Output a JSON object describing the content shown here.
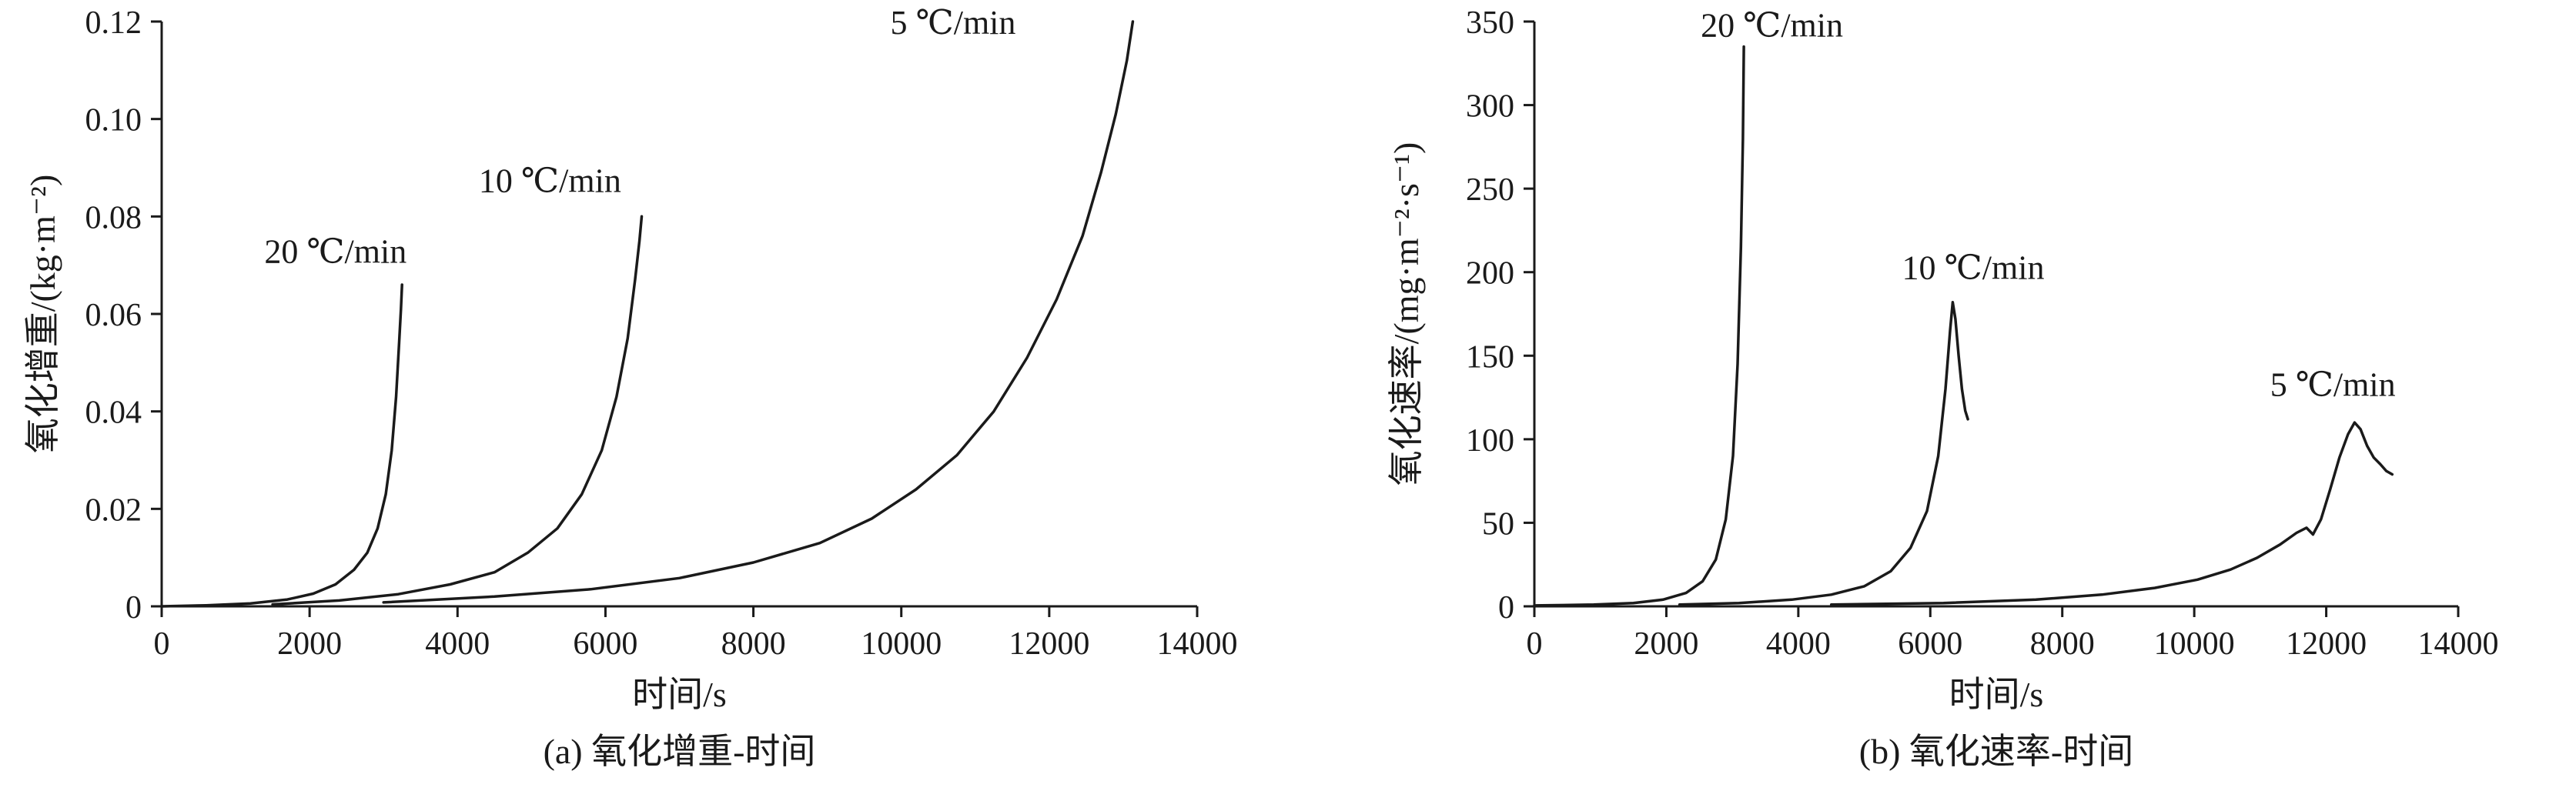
{
  "page": {
    "background": "#ffffff",
    "line_color": "#1a1a1a"
  },
  "chart_data": [
    {
      "id": "a",
      "type": "line",
      "title": "",
      "caption": "(a) 氧化增重-时间",
      "xlabel": "时间/s",
      "ylabel": "氧化增重/(kg·m⁻²)",
      "xlim": [
        0,
        14000
      ],
      "ylim": [
        0,
        0.12
      ],
      "grid": false,
      "legend": "inline-annotations",
      "xticks": [
        0,
        2000,
        4000,
        6000,
        8000,
        10000,
        12000,
        14000
      ],
      "xtick_labels": [
        "0",
        "2000",
        "4000",
        "6000",
        "8000",
        "10000",
        "12000",
        "14000"
      ],
      "yticks": [
        0,
        0.02,
        0.04,
        0.06,
        0.08,
        0.1,
        0.12
      ],
      "ytick_labels": [
        "0",
        "0.02",
        "0.04",
        "0.06",
        "0.08",
        "0.10",
        "0.12"
      ],
      "series": [
        {
          "name": "20 ℃/min",
          "label_pos": [
            2350,
            0.0705
          ],
          "points": [
            [
              0,
              0
            ],
            [
              600,
              0.0002
            ],
            [
              1200,
              0.0006
            ],
            [
              1700,
              0.0014
            ],
            [
              2050,
              0.0026
            ],
            [
              2350,
              0.0045
            ],
            [
              2600,
              0.0075
            ],
            [
              2780,
              0.011
            ],
            [
              2920,
              0.016
            ],
            [
              3030,
              0.023
            ],
            [
              3110,
              0.032
            ],
            [
              3170,
              0.043
            ],
            [
              3210,
              0.054
            ],
            [
              3235,
              0.061
            ],
            [
              3250,
              0.066
            ]
          ]
        },
        {
          "name": "10 ℃/min",
          "label_pos": [
            5250,
            0.085
          ],
          "points": [
            [
              1500,
              0.0004
            ],
            [
              2400,
              0.0012
            ],
            [
              3200,
              0.0025
            ],
            [
              3900,
              0.0045
            ],
            [
              4500,
              0.007
            ],
            [
              4950,
              0.011
            ],
            [
              5350,
              0.016
            ],
            [
              5680,
              0.023
            ],
            [
              5950,
              0.032
            ],
            [
              6150,
              0.043
            ],
            [
              6300,
              0.055
            ],
            [
              6400,
              0.067
            ],
            [
              6460,
              0.075
            ],
            [
              6490,
              0.08
            ]
          ]
        },
        {
          "name": "5 ℃/min",
          "label_pos": [
            10700,
            0.1175
          ],
          "points": [
            [
              3000,
              0.0008
            ],
            [
              4500,
              0.002
            ],
            [
              5800,
              0.0035
            ],
            [
              7000,
              0.0058
            ],
            [
              8000,
              0.009
            ],
            [
              8900,
              0.013
            ],
            [
              9600,
              0.018
            ],
            [
              10200,
              0.024
            ],
            [
              10750,
              0.031
            ],
            [
              11250,
              0.04
            ],
            [
              11700,
              0.051
            ],
            [
              12100,
              0.063
            ],
            [
              12450,
              0.076
            ],
            [
              12700,
              0.089
            ],
            [
              12900,
              0.101
            ],
            [
              13050,
              0.112
            ],
            [
              13130,
              0.12
            ]
          ]
        }
      ]
    },
    {
      "id": "b",
      "type": "line",
      "title": "",
      "caption": "(b) 氧化速率-时间",
      "xlabel": "时间/s",
      "ylabel": "氧化速率/(mg·m⁻²·s⁻¹)",
      "xlim": [
        0,
        14000
      ],
      "ylim": [
        0,
        350
      ],
      "grid": false,
      "legend": "inline-annotations",
      "xticks": [
        0,
        2000,
        4000,
        6000,
        8000,
        10000,
        12000,
        14000
      ],
      "xtick_labels": [
        "0",
        "2000",
        "4000",
        "6000",
        "8000",
        "10000",
        "12000",
        "14000"
      ],
      "yticks": [
        0,
        50,
        100,
        150,
        200,
        250,
        300,
        350
      ],
      "ytick_labels": [
        "0",
        "50",
        "100",
        "150",
        "200",
        "250",
        "300",
        "350"
      ],
      "series": [
        {
          "name": "20 ℃/min",
          "label_pos": [
            3600,
            341
          ],
          "points": [
            [
              0,
              0.5
            ],
            [
              900,
              1
            ],
            [
              1500,
              2
            ],
            [
              1950,
              4
            ],
            [
              2300,
              8
            ],
            [
              2550,
              15
            ],
            [
              2750,
              28
            ],
            [
              2900,
              52
            ],
            [
              3010,
              90
            ],
            [
              3080,
              145
            ],
            [
              3130,
              215
            ],
            [
              3160,
              280
            ],
            [
              3175,
              335
            ]
          ]
        },
        {
          "name": "10 ℃/min",
          "label_pos": [
            6650,
            196
          ],
          "points": [
            [
              2200,
              1
            ],
            [
              3100,
              2
            ],
            [
              3900,
              4
            ],
            [
              4500,
              7
            ],
            [
              5000,
              12
            ],
            [
              5400,
              21
            ],
            [
              5700,
              35
            ],
            [
              5950,
              57
            ],
            [
              6120,
              90
            ],
            [
              6230,
              130
            ],
            [
              6300,
              165
            ],
            [
              6340,
              182
            ],
            [
              6380,
              172
            ],
            [
              6430,
              150
            ],
            [
              6480,
              130
            ],
            [
              6530,
              117
            ],
            [
              6570,
              112
            ]
          ]
        },
        {
          "name": "5 ℃/min",
          "label_pos": [
            12100,
            126
          ],
          "points": [
            [
              4500,
              1
            ],
            [
              6200,
              2
            ],
            [
              7600,
              4
            ],
            [
              8600,
              7
            ],
            [
              9400,
              11
            ],
            [
              10050,
              16
            ],
            [
              10550,
              22
            ],
            [
              10950,
              29
            ],
            [
              11300,
              37
            ],
            [
              11550,
              44
            ],
            [
              11700,
              47
            ],
            [
              11800,
              43
            ],
            [
              11920,
              52
            ],
            [
              12060,
              70
            ],
            [
              12200,
              89
            ],
            [
              12330,
              103
            ],
            [
              12430,
              110
            ],
            [
              12520,
              106
            ],
            [
              12620,
              96
            ],
            [
              12720,
              89
            ],
            [
              12820,
              85
            ],
            [
              12910,
              81
            ],
            [
              13000,
              79
            ]
          ]
        }
      ]
    }
  ]
}
